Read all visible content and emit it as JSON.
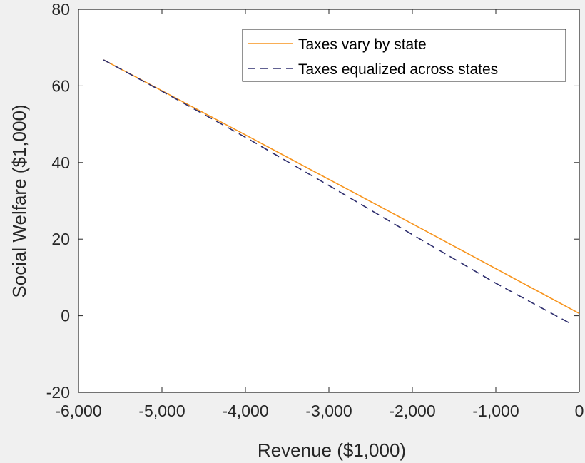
{
  "chart_data": {
    "type": "line",
    "title": "",
    "xlabel": "Revenue ($1,000)",
    "ylabel": "Social Welfare ($1,000)",
    "xlim": [
      -6000,
      0
    ],
    "ylim": [
      -20,
      80
    ],
    "x_ticks": [
      -6000,
      -5000,
      -4000,
      -3000,
      -2000,
      -1000,
      0
    ],
    "x_tick_labels": [
      "-6,000",
      "-5,000",
      "-4,000",
      "-3,000",
      "-2,000",
      "-1,000",
      "0"
    ],
    "y_ticks": [
      -20,
      0,
      20,
      40,
      60,
      80
    ],
    "y_tick_labels": [
      "-20",
      "0",
      "20",
      "40",
      "60",
      "80"
    ],
    "grid": false,
    "legend_position": "top-right",
    "series": [
      {
        "name": "Taxes vary by state",
        "color": "#f7941d",
        "style": "solid",
        "x": [
          -5700,
          -4000,
          -2000,
          0
        ],
        "y": [
          66.8,
          47.2,
          24.0,
          0.6
        ]
      },
      {
        "name": "Taxes equalized across states",
        "color": "#2e2e6e",
        "style": "dashed",
        "x": [
          -5700,
          -5000,
          -4000,
          -3000,
          -2000,
          -1000,
          -100
        ],
        "y": [
          66.8,
          58.6,
          46.6,
          34.0,
          21.2,
          8.5,
          -2.1
        ]
      }
    ]
  }
}
